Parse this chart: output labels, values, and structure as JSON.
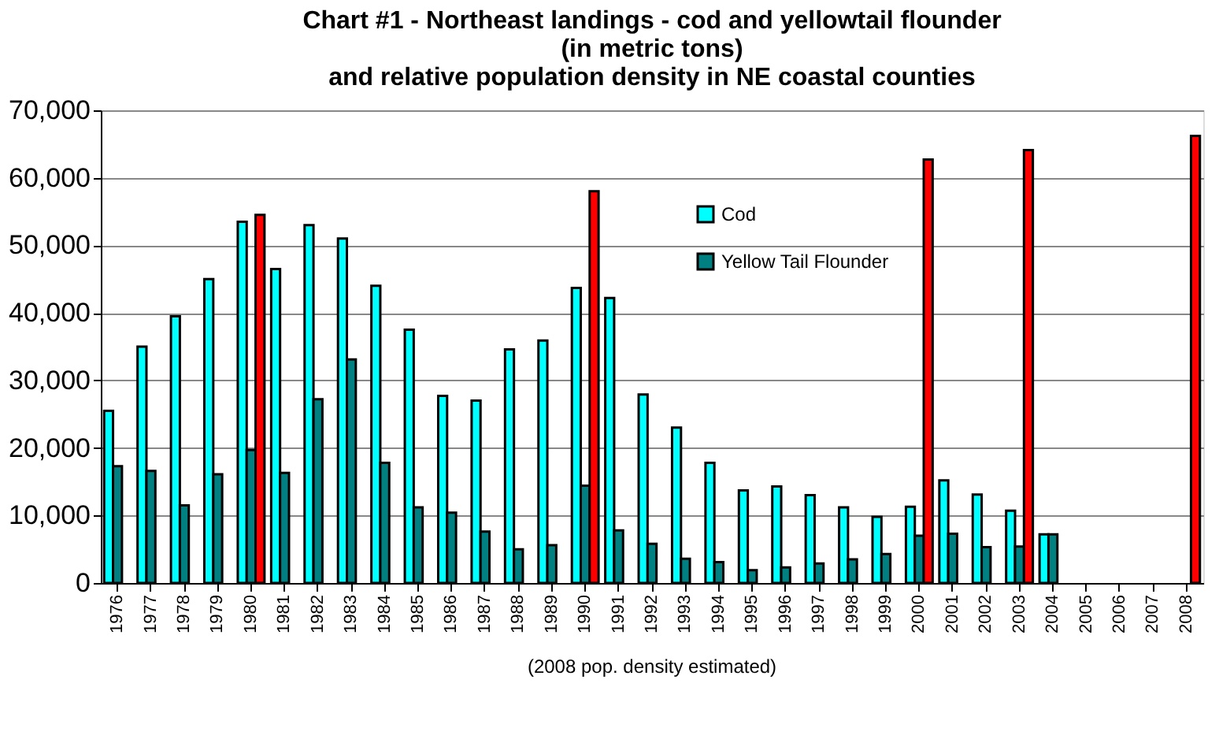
{
  "chart_data": {
    "type": "bar",
    "title": [
      "Chart #1 - Northeast landings - cod and yellowtail flounder",
      "(in metric tons)",
      "and relative population density in NE coastal counties"
    ],
    "categories": [
      "1976",
      "1977",
      "1978",
      "1979",
      "1980",
      "1981",
      "1982",
      "1983",
      "1984",
      "1985",
      "1986",
      "1987",
      "1988",
      "1989",
      "1990",
      "1991",
      "1992",
      "1993",
      "1994",
      "1995",
      "1996",
      "1997",
      "1998",
      "1999",
      "2000",
      "2001",
      "2002",
      "2003",
      "2004",
      "2005",
      "2006",
      "2007",
      "2008"
    ],
    "series": [
      {
        "name": "Cod",
        "color": "#00ffff",
        "values": [
          25500,
          35000,
          39500,
          45000,
          53500,
          46500,
          53000,
          51000,
          44000,
          37500,
          27700,
          27000,
          34600,
          35900,
          43700,
          42200,
          27900,
          23000,
          17800,
          13700,
          14300,
          13000,
          11200,
          9800,
          11300,
          15200,
          13100,
          10700,
          7200,
          null,
          null,
          null,
          null
        ]
      },
      {
        "name": "Yellow Tail Flounder",
        "color": "#008080",
        "values": [
          17300,
          16600,
          11500,
          16100,
          19700,
          16300,
          27200,
          33100,
          17800,
          11200,
          10400,
          7600,
          5000,
          5600,
          14400,
          7800,
          5800,
          3600,
          3100,
          1900,
          2300,
          2900,
          3500,
          4300,
          7000,
          7300,
          5300,
          5400,
          7200,
          null,
          null,
          null,
          null
        ]
      },
      {
        "color": "#ff0000",
        "values": [
          null,
          null,
          null,
          null,
          54500,
          null,
          null,
          null,
          null,
          null,
          null,
          null,
          null,
          null,
          58000,
          null,
          null,
          null,
          null,
          null,
          null,
          null,
          null,
          null,
          62700,
          null,
          null,
          64100,
          null,
          null,
          null,
          null,
          66200
        ]
      }
    ],
    "ylim": [
      0,
      70000
    ],
    "yticks": [
      0,
      {
        "value": 10000,
        "label": "10,000"
      },
      {
        "value": 20000,
        "label": "20,000"
      },
      {
        "value": 30000,
        "label": "30,000"
      },
      {
        "value": 40000,
        "label": "40,000"
      },
      {
        "value": 50000,
        "label": "50,000"
      },
      {
        "value": 60000,
        "label": "60,000"
      },
      {
        "value": 70000,
        "label": "70,000"
      }
    ],
    "grid": "y",
    "legend": "top",
    "annotations": [
      "(2008 pop. density estimated)"
    ]
  }
}
